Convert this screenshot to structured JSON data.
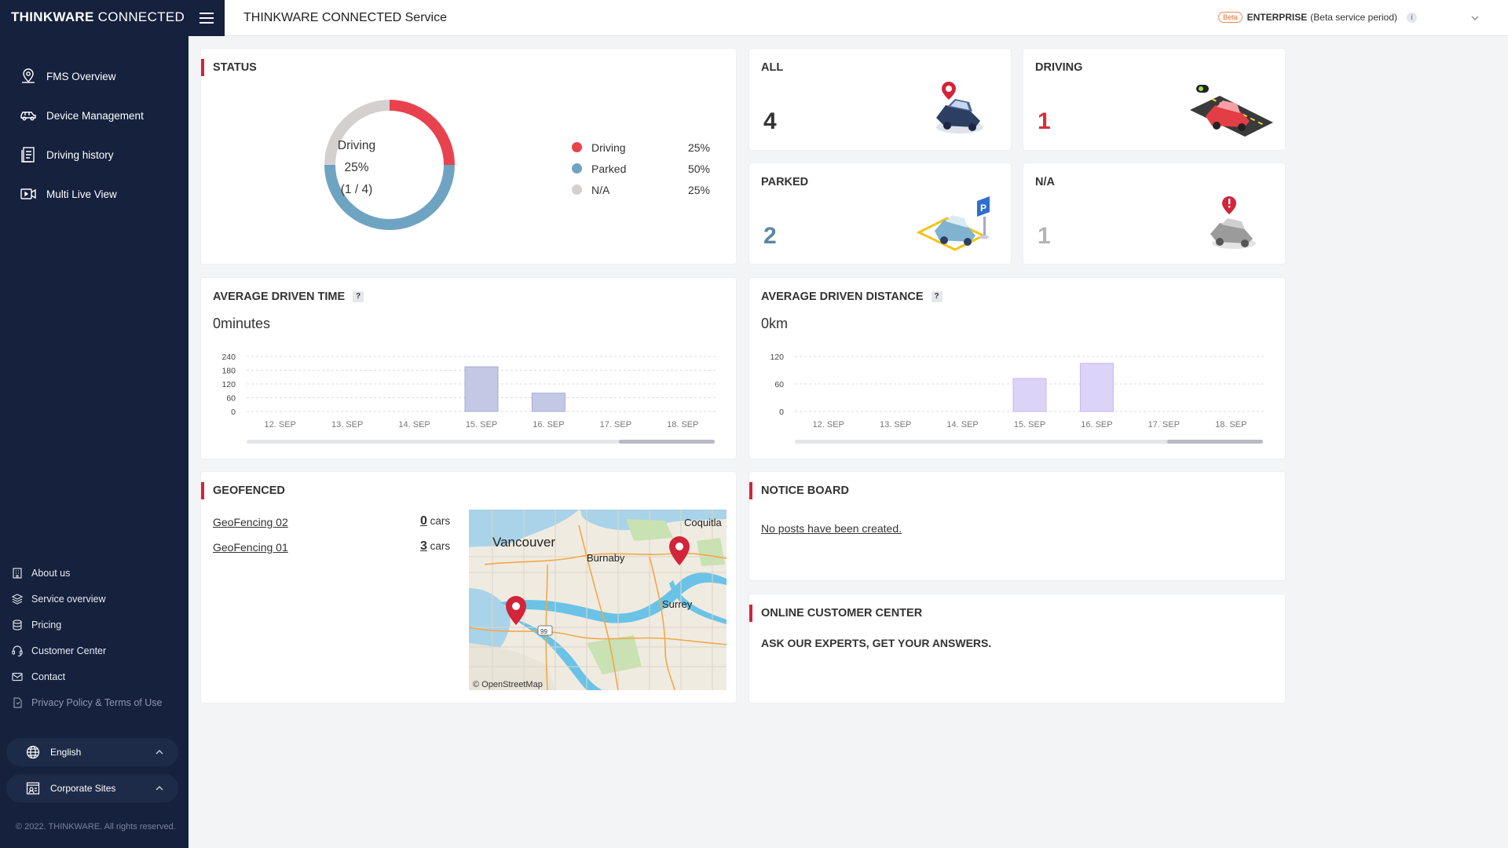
{
  "app": {
    "logo_bold": "THINKWARE",
    "logo_light": "CONNECTED",
    "header_title": "THINKWARE CONNECTED Service",
    "plan_badge": "Beta",
    "plan_name": "ENTERPRISE",
    "plan_note": "(Beta service period)",
    "info_glyph": "i"
  },
  "sidebar": {
    "nav": [
      {
        "label": "FMS Overview",
        "icon": "map-pin-icon"
      },
      {
        "label": "Device Management",
        "icon": "car-icon"
      },
      {
        "label": "Driving history",
        "icon": "document-icon"
      },
      {
        "label": "Multi Live View",
        "icon": "video-icon"
      }
    ],
    "links": [
      {
        "label": "About us",
        "icon": "building-icon"
      },
      {
        "label": "Service overview",
        "icon": "layers-icon"
      },
      {
        "label": "Pricing",
        "icon": "coins-icon"
      },
      {
        "label": "Customer Center",
        "icon": "headset-icon"
      },
      {
        "label": "Contact",
        "icon": "mail-icon"
      },
      {
        "label": "Privacy Policy & Terms of Use",
        "icon": "policy-icon"
      }
    ],
    "language": "English",
    "corporate": "Corporate Sites",
    "copyright": "© 2022. THINKWARE. All rights reserved."
  },
  "status": {
    "title": "STATUS",
    "center_label": "Driving",
    "center_pct": "25%",
    "center_count": "(1 / 4)",
    "legend": [
      {
        "label": "Driving",
        "pct": "25%",
        "color": "#e9424f",
        "value": 25
      },
      {
        "label": "Parked",
        "pct": "50%",
        "color": "#6fa3c2",
        "value": 50
      },
      {
        "label": "N/A",
        "pct": "25%",
        "color": "#d4d0cf",
        "value": 25
      }
    ]
  },
  "tiles": [
    {
      "label": "ALL",
      "value": "4",
      "color": "#333333"
    },
    {
      "label": "DRIVING",
      "value": "1",
      "color": "#d5303c"
    },
    {
      "label": "PARKED",
      "value": "2",
      "color": "#5b87a6"
    },
    {
      "label": "N/A",
      "value": "1",
      "color": "#b4b4b4"
    }
  ],
  "avg_time": {
    "title": "AVERAGE DRIVEN TIME",
    "q": "?",
    "value": "0minutes"
  },
  "avg_distance": {
    "title": "AVERAGE DRIVEN DISTANCE",
    "q": "?",
    "value": "0km"
  },
  "chart_data": [
    {
      "type": "bar",
      "categories": [
        "12. SEP",
        "13. SEP",
        "14. SEP",
        "15. SEP",
        "16. SEP",
        "17. SEP",
        "18. SEP"
      ],
      "values": [
        0,
        0,
        0,
        195,
        80,
        0,
        0
      ],
      "yticks": [
        0,
        60,
        120,
        180,
        240
      ],
      "ylim": [
        0,
        240
      ],
      "color": "#c3c8e4",
      "stroke": "#a5acd6",
      "grid": true
    },
    {
      "type": "bar",
      "categories": [
        "12. SEP",
        "13. SEP",
        "14. SEP",
        "15. SEP",
        "16. SEP",
        "17. SEP",
        "18. SEP"
      ],
      "values": [
        0,
        0,
        0,
        72,
        105,
        0,
        0
      ],
      "yticks": [
        0,
        60,
        120
      ],
      "ylim": [
        0,
        120
      ],
      "color": "#dcd4f8",
      "stroke": "#c4b6f2",
      "grid": true
    }
  ],
  "geofenced": {
    "title": "GEOFENCED",
    "unit": "cars",
    "rows": [
      {
        "name": "GeoFencing 02",
        "count": "0"
      },
      {
        "name": "GeoFencing 01",
        "count": "3"
      }
    ],
    "map": {
      "labels": [
        "Vancouver",
        "Burnaby",
        "Coquitla",
        "Surrey"
      ],
      "highway": "99",
      "attribution": "© OpenStreetMap"
    }
  },
  "notice": {
    "title": "NOTICE BOARD",
    "empty": "No posts have been created."
  },
  "customer_center": {
    "title": "ONLINE CUSTOMER CENTER",
    "subtitle": "ASK OUR EXPERTS, GET YOUR ANSWERS."
  }
}
